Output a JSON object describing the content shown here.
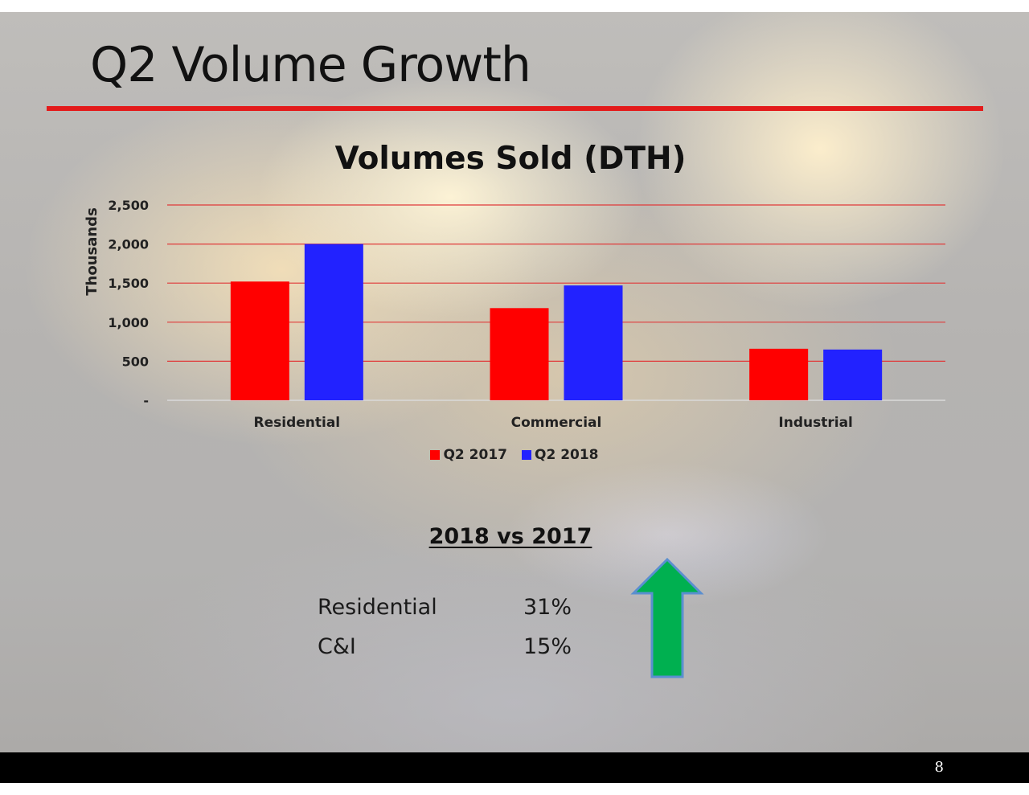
{
  "slide": {
    "title": "Q2 Volume Growth",
    "title_rule_color": "#e31b1b",
    "page_number": "8"
  },
  "chart_data": {
    "type": "bar",
    "title": "Volumes Sold (DTH)",
    "xlabel": "",
    "ylabel": "Thousands",
    "categories": [
      "Residential",
      "Commercial",
      "Industrial"
    ],
    "series": [
      {
        "name": "Q2 2017",
        "color": "#ff0000",
        "values": [
          1520,
          1180,
          660
        ]
      },
      {
        "name": "Q2 2018",
        "color": "#2222ff",
        "values": [
          2000,
          1470,
          650
        ]
      }
    ],
    "ylim": [
      0,
      2500
    ],
    "yticks": [
      0,
      500,
      1000,
      1500,
      2000,
      2500
    ],
    "ytick_labels": [
      "-",
      "500",
      "1,000",
      "1,500",
      "2,000",
      "2,500"
    ],
    "grid": true,
    "grid_color": "#e03a3a",
    "legend_position": "bottom"
  },
  "comparison": {
    "heading": "2018 vs 2017",
    "rows": [
      {
        "label": "Residential",
        "value": "31%"
      },
      {
        "label": "C&I",
        "value": "15%"
      }
    ],
    "trend_icon": "up-arrow-icon",
    "trend_color": "#00b050"
  }
}
